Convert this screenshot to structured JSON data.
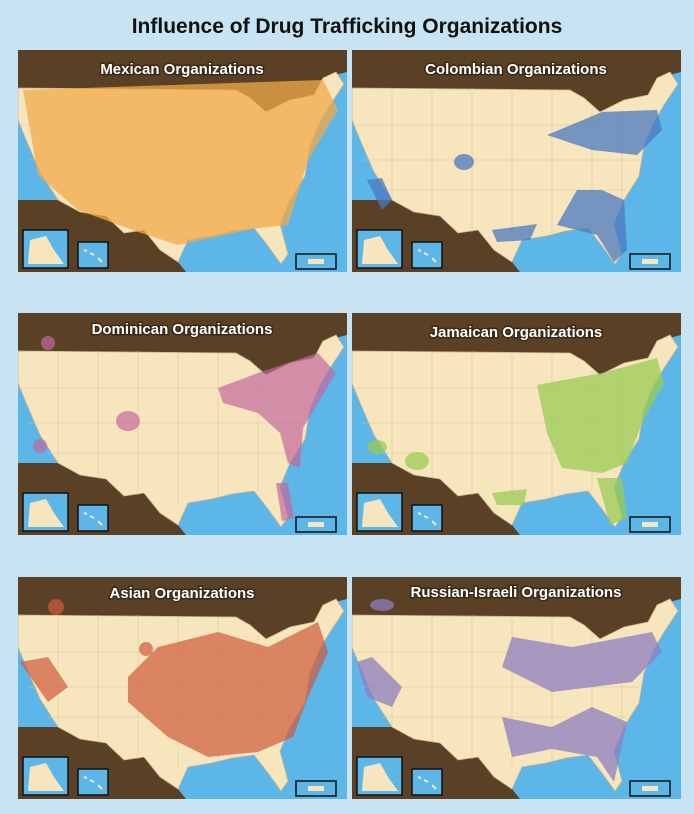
{
  "title": "Influence of Drug Trafficking Organizations",
  "panels": [
    {
      "title": "Mexican Organizations"
    },
    {
      "title": "Colombian Organizations"
    },
    {
      "title": "Dominican Organizations"
    },
    {
      "title": "Jamaican Organizations"
    },
    {
      "title": "Asian Organizations"
    },
    {
      "title": "Russian-Israeli Organizations"
    }
  ]
}
